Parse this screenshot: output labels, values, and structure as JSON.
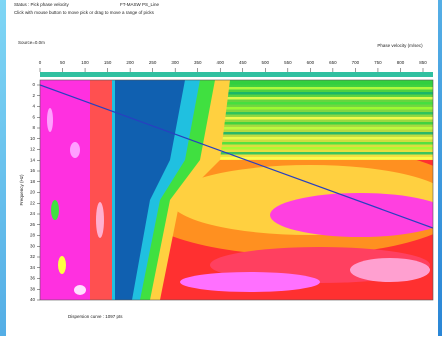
{
  "header": {
    "status": "Status : Pick phase velocity",
    "file": "FT-MASW PS_Line",
    "hint": "Click with mouse button to move pick or drag to move a range of picks"
  },
  "chart_data": {
    "type": "heatmap",
    "source": "Source=0.0m",
    "xlabel": "Phase velocity (m/sec)",
    "ylabel": "Frequency (Hz)",
    "xlim": [
      0,
      850
    ],
    "xticks": [
      0,
      50,
      100,
      150,
      200,
      250,
      300,
      350,
      400,
      450,
      500,
      550,
      600,
      650,
      700,
      750,
      800,
      850
    ],
    "ylim": [
      0,
      40
    ],
    "yticks": [
      0,
      2,
      4,
      6,
      8,
      10,
      12,
      14,
      16,
      18,
      20,
      22,
      24,
      26,
      28,
      30,
      32,
      34,
      36,
      38,
      40
    ]
  },
  "footer": {
    "curve": "Dispersion curve : 1097 pts"
  }
}
